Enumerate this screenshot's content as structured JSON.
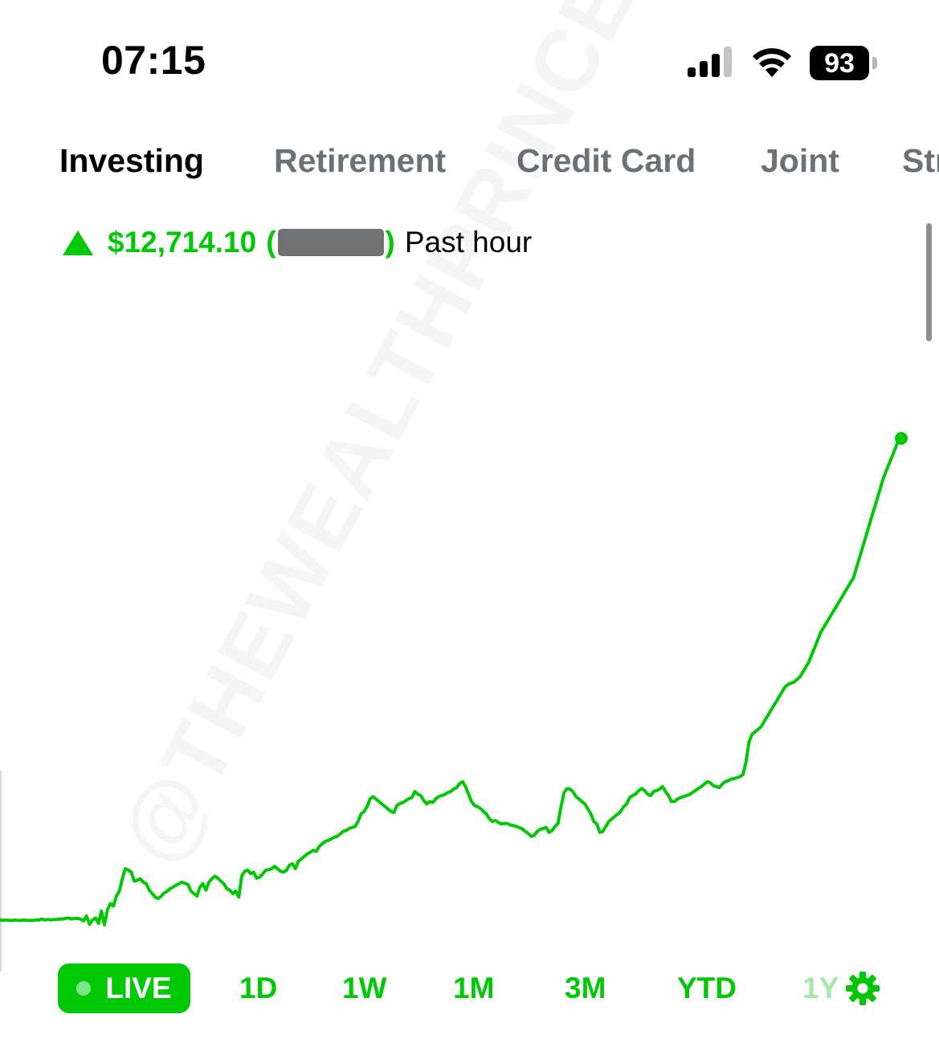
{
  "status_bar": {
    "time": "07:15",
    "signal_icon": "cellular-signal-icon",
    "wifi_icon": "wifi-icon",
    "battery_level": "93"
  },
  "account_tabs": [
    {
      "label": "Investing",
      "active": true
    },
    {
      "label": "Retirement",
      "active": false
    },
    {
      "label": "Credit Card",
      "active": false
    },
    {
      "label": "Joint",
      "active": false
    },
    {
      "label": "Str",
      "active": false
    }
  ],
  "change": {
    "direction_icon": "up-triangle-icon",
    "amount": "$12,714.10",
    "open_paren": "(",
    "close_paren": ")",
    "period": "Past hour"
  },
  "watermark": "@THEWEALTHPRINCE",
  "colors": {
    "accent": "#00c805",
    "tab_inactive": "#6b7277",
    "redacted": "#707274"
  },
  "chart_data": {
    "type": "line",
    "series": [
      {
        "values": [
          12,
          11,
          12,
          11,
          11,
          12,
          11,
          11,
          12,
          11,
          11,
          11,
          12,
          12,
          14,
          12,
          13,
          12,
          13,
          13,
          14,
          14,
          15,
          16,
          14,
          15,
          15,
          14,
          10,
          20,
          3,
          12,
          16,
          5,
          30,
          2,
          32,
          45,
          40,
          60,
          70,
          95,
          115,
          112,
          108,
          90,
          92,
          95,
          88,
          85,
          72,
          65,
          58,
          55,
          60,
          66,
          70,
          75,
          78,
          82,
          85,
          88,
          86,
          83,
          70,
          65,
          60,
          78,
          85,
          72,
          88,
          95,
          100,
          96,
          90,
          85,
          75,
          72,
          65,
          70,
          58,
          100,
          110,
          112,
          105,
          108,
          96,
          98,
          104,
          112,
          113,
          115,
          120,
          115,
          110,
          108,
          112,
          122,
          125,
          115,
          130,
          135,
          140,
          145,
          148,
          152,
          150,
          160,
          165,
          170,
          172,
          175,
          178,
          180,
          185,
          190,
          192,
          196,
          198,
          200,
          210,
          225,
          230,
          240,
          255,
          260,
          255,
          250,
          245,
          240,
          235,
          230,
          228,
          242,
          246,
          248,
          252,
          256,
          258,
          270,
          265,
          262,
          252,
          245,
          250,
          248,
          255,
          260,
          262,
          264,
          268,
          270,
          275,
          278,
          286,
          290,
          280,
          265,
          250,
          242,
          240,
          236,
          230,
          225,
          215,
          210,
          212,
          208,
          205,
          206,
          206,
          203,
          202,
          200,
          198,
          195,
          190,
          186,
          180,
          182,
          190,
          194,
          196,
          198,
          188,
          192,
          200,
          206,
          240,
          268,
          276,
          275,
          270,
          260,
          255,
          250,
          245,
          235,
          225,
          210,
          205,
          188,
          190,
          200,
          210,
          215,
          220,
          225,
          230,
          240,
          245,
          258,
          262,
          265,
          272,
          276,
          272,
          265,
          262,
          270,
          272,
          275,
          280,
          270,
          262,
          250,
          250,
          255,
          258,
          260,
          262,
          264,
          268,
          272,
          276,
          280,
          285,
          290,
          288,
          282,
          280,
          278,
          285,
          290,
          292,
          295,
          296,
          298,
          300,
          305,
          330,
          370,
          385,
          390,
          395,
          400,
          410,
          420,
          430,
          440,
          450,
          460,
          470,
          480,
          485,
          488,
          490,
          495,
          500,
          510,
          520,
          530,
          545,
          560,
          575,
          590,
          600,
          610,
          620,
          630,
          640,
          650,
          660,
          670,
          680,
          690,
          700,
          720,
          740,
          760,
          780,
          800,
          820,
          840,
          860,
          880,
          900,
          915,
          930,
          945,
          960,
          975,
          980
        ]
      }
    ],
    "x_range_label": "Past hour",
    "grid": false,
    "legend": "none",
    "end_marker": true
  },
  "ranges": {
    "live_label": "LIVE",
    "items": [
      "1D",
      "1W",
      "1M",
      "3M",
      "YTD",
      "1Y"
    ],
    "settings_icon": "gear-icon"
  }
}
